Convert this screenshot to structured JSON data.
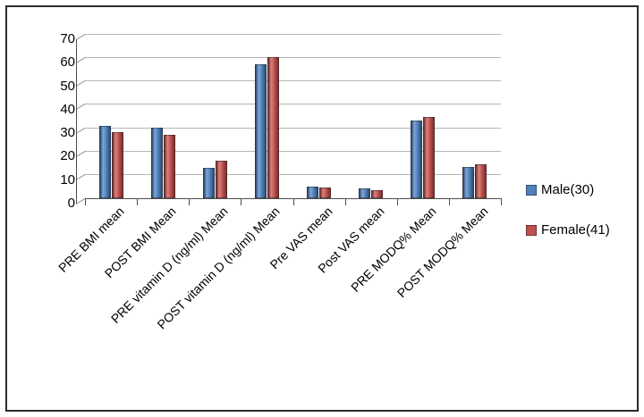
{
  "chart_data": {
    "type": "bar",
    "title": "",
    "xlabel": "",
    "ylabel": "",
    "categories": [
      "PRE BMI mean",
      "POST BMI Mean",
      "PRE vitamin D (ng/ml) Mean",
      "POST vitamin D (ng/ml) Mean",
      "Pre VAS mean",
      "Post VAS mean",
      "PRE MODQ% Mean",
      "POST MODQ% Mean"
    ],
    "series": [
      {
        "name": "Male(30)",
        "color": "#4f81bd",
        "color_light": "#7fa5d6",
        "color_dark": "#2e4d71",
        "values": [
          31,
          30,
          13,
          57,
          5,
          4,
          33,
          13.5
        ]
      },
      {
        "name": "Female(41)",
        "color": "#c0504d",
        "color_light": "#d58481",
        "color_dark": "#7a2f2d",
        "values": [
          28,
          27,
          16,
          60,
          4.5,
          3.5,
          34.5,
          14.5
        ]
      }
    ],
    "ylim": [
      0,
      70
    ],
    "ytick_step": 10,
    "grid": true,
    "legend_position": "right"
  }
}
